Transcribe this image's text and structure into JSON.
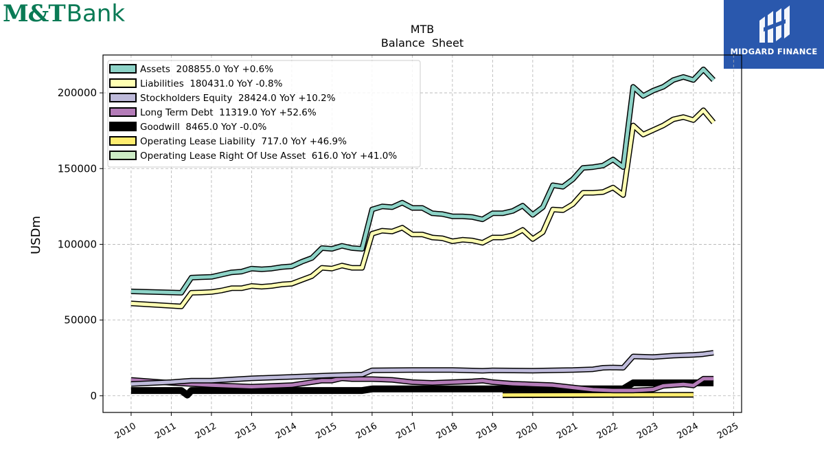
{
  "brand": {
    "logo_mark": "M&T",
    "logo_word": "Bank"
  },
  "badge": {
    "name": "MIDGARD FINANCE",
    "color": "#2a58ad",
    "icon": "midgard-logo-icon"
  },
  "chart_data": {
    "type": "line",
    "title": "MTB",
    "subtitle": "Balance  Sheet",
    "xlabel": "",
    "ylabel": "USDm",
    "xlim": [
      2009.3,
      2025.2
    ],
    "ylim": [
      -11000,
      225000
    ],
    "x_ticks": [
      2010,
      2011,
      2012,
      2013,
      2014,
      2015,
      2016,
      2017,
      2018,
      2019,
      2020,
      2021,
      2022,
      2023,
      2024,
      2025
    ],
    "y_ticks": [
      0,
      50000,
      100000,
      150000,
      200000
    ],
    "grid": true,
    "legend_position": "top-left",
    "series": [
      {
        "name": "Assets  208855.0 YoY +0.6%",
        "color": "#8dd3c7",
        "x": [
          2010.0,
          2011.25,
          2011.5,
          2011.75,
          2012.0,
          2012.25,
          2012.5,
          2012.75,
          2013.0,
          2013.25,
          2013.5,
          2013.75,
          2014.0,
          2014.25,
          2014.5,
          2014.75,
          2015.0,
          2015.25,
          2015.5,
          2015.75,
          2016.0,
          2016.25,
          2016.5,
          2016.75,
          2017.0,
          2017.25,
          2017.5,
          2017.75,
          2018.0,
          2018.25,
          2018.5,
          2018.75,
          2019.0,
          2019.25,
          2019.5,
          2019.75,
          2020.0,
          2020.25,
          2020.5,
          2020.75,
          2021.0,
          2021.25,
          2021.5,
          2021.75,
          2022.0,
          2022.25,
          2022.5,
          2022.75,
          2023.0,
          2023.25,
          2023.5,
          2023.75,
          2024.0,
          2024.25,
          2024.5
        ],
        "values": [
          68900,
          68000,
          78000,
          78300,
          78500,
          80000,
          81500,
          82000,
          84000,
          83500,
          84000,
          85000,
          85500,
          88500,
          91000,
          97500,
          97000,
          99000,
          97500,
          97000,
          123000,
          125000,
          124500,
          127500,
          124000,
          124000,
          120500,
          120000,
          118500,
          118500,
          118000,
          116500,
          120500,
          120500,
          122000,
          125500,
          119500,
          124500,
          139000,
          138000,
          143000,
          150500,
          151000,
          152000,
          156000,
          151000,
          204000,
          198000,
          201500,
          204000,
          208500,
          210500,
          208500,
          215500,
          208500
        ]
      },
      {
        "name": "Liabilities  180431.0 YoY -0.8%",
        "color": "#ffffb3",
        "x": [
          2010.0,
          2011.25,
          2011.5,
          2011.75,
          2012.0,
          2012.25,
          2012.5,
          2012.75,
          2013.0,
          2013.25,
          2013.5,
          2013.75,
          2014.0,
          2014.25,
          2014.5,
          2014.75,
          2015.0,
          2015.25,
          2015.5,
          2015.75,
          2016.0,
          2016.25,
          2016.5,
          2016.75,
          2017.0,
          2017.25,
          2017.5,
          2017.75,
          2018.0,
          2018.25,
          2018.5,
          2018.75,
          2019.0,
          2019.25,
          2019.5,
          2019.75,
          2020.0,
          2020.25,
          2020.5,
          2020.75,
          2021.0,
          2021.25,
          2021.5,
          2021.75,
          2022.0,
          2022.25,
          2022.5,
          2022.75,
          2023.0,
          2023.25,
          2023.5,
          2023.75,
          2024.0,
          2024.25,
          2024.5
        ],
        "values": [
          61000,
          59000,
          68000,
          68200,
          68500,
          69500,
          71000,
          71000,
          72500,
          72000,
          72500,
          73500,
          74000,
          76500,
          79000,
          84500,
          84000,
          86000,
          84500,
          84500,
          107000,
          109000,
          108500,
          111000,
          106500,
          106500,
          104500,
          104000,
          102000,
          103000,
          102500,
          101000,
          104500,
          104500,
          106000,
          109500,
          103500,
          108000,
          123000,
          122500,
          126500,
          134000,
          134000,
          134500,
          137500,
          132500,
          178500,
          172500,
          175500,
          178500,
          182500,
          184000,
          182000,
          188500,
          180500
        ]
      },
      {
        "name": "Stockholders Equity  28424.0 YoY +10.2%",
        "color": "#bebada",
        "x": [
          2010.0,
          2011.0,
          2011.5,
          2012.0,
          2013.0,
          2014.0,
          2014.5,
          2015.0,
          2015.75,
          2016.0,
          2017.0,
          2018.0,
          2018.75,
          2019.0,
          2020.0,
          2021.0,
          2021.5,
          2021.75,
          2022.0,
          2022.25,
          2022.5,
          2023.0,
          2023.5,
          2024.0,
          2024.25,
          2024.5
        ],
        "values": [
          7800,
          9000,
          10000,
          10000,
          11500,
          12500,
          13000,
          13500,
          14000,
          16800,
          17000,
          17000,
          16500,
          16800,
          16600,
          17000,
          17500,
          18500,
          18700,
          18500,
          26000,
          25600,
          26500,
          27000,
          27500,
          28400
        ]
      },
      {
        "name": "Long Term Debt  11319.0 YoY +52.6%",
        "color": "#b47cb8",
        "x": [
          2010.0,
          2011.0,
          2012.0,
          2012.5,
          2013.0,
          2013.5,
          2014.0,
          2014.5,
          2014.75,
          2015.0,
          2015.25,
          2015.5,
          2016.0,
          2016.5,
          2017.0,
          2017.5,
          2018.0,
          2018.5,
          2018.75,
          2019.0,
          2019.5,
          2020.0,
          2020.5,
          2021.0,
          2021.5,
          2022.0,
          2022.5,
          2022.75,
          2023.0,
          2023.25,
          2023.5,
          2023.75,
          2024.0,
          2024.25,
          2024.5
        ],
        "values": [
          10500,
          8500,
          7000,
          6500,
          6000,
          6500,
          7000,
          9000,
          10000,
          10000,
          11500,
          11000,
          11000,
          10500,
          9000,
          8500,
          9000,
          9500,
          10000,
          9000,
          8000,
          7500,
          7000,
          5500,
          4000,
          3500,
          3500,
          3800,
          4200,
          6500,
          7000,
          7500,
          6800,
          11300,
          11300
        ]
      },
      {
        "name": "Goodwill  8465.0 YoY -0.0%",
        "color": "#000000",
        "x": [
          2010.0,
          2011.25,
          2011.4,
          2011.5,
          2011.6,
          2012.0,
          2015.75,
          2016.0,
          2022.25,
          2022.5,
          2024.5
        ],
        "values": [
          3500,
          3500,
          500,
          3500,
          3500,
          3500,
          3500,
          4500,
          4500,
          8500,
          8500
        ]
      },
      {
        "name": "Operating Lease Liability  717.0 YoY +46.9%",
        "color": "#ffed6f",
        "x": [
          2019.25,
          2024.0
        ],
        "values": [
          500,
          700
        ]
      },
      {
        "name": "Operating Lease Right Of Use Asset  616.0 YoY +41.0%",
        "color": "#ccebc5",
        "x": [
          2019.25,
          2024.0
        ],
        "values": [
          300,
          600
        ]
      }
    ]
  }
}
